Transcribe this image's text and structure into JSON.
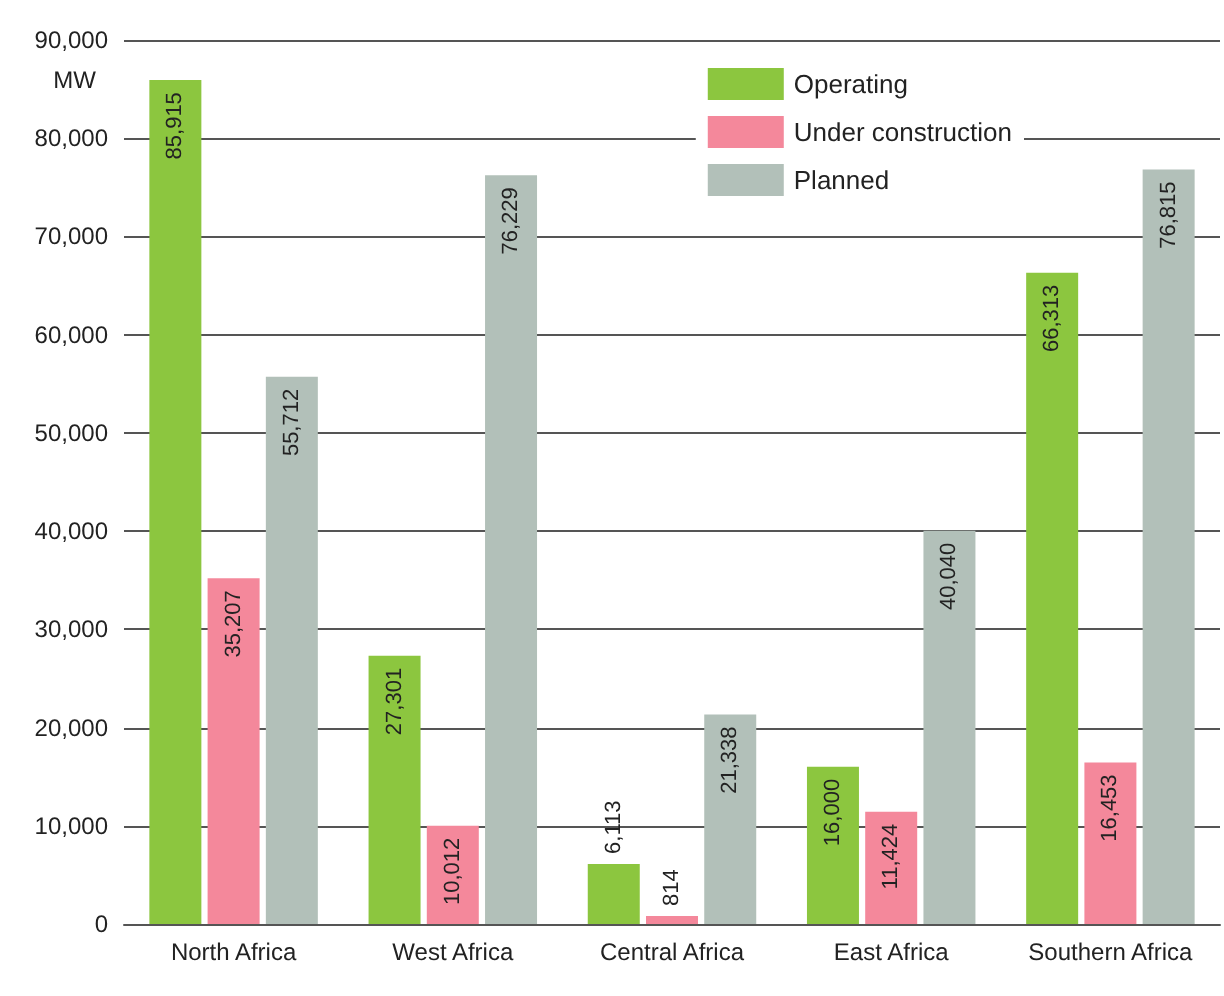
{
  "chart_data": {
    "type": "bar",
    "ylabel": "MW",
    "categories": [
      "North Africa",
      "West Africa",
      "Central Africa",
      "East Africa",
      "Southern Africa"
    ],
    "series": [
      {
        "name": "Operating",
        "color": "#8cc63f",
        "values": [
          85915,
          27301,
          6113,
          16000,
          66313
        ],
        "value_labels": [
          "85,915",
          "27,301",
          "6,113",
          "16,000",
          "66,313"
        ]
      },
      {
        "name": "Under construction",
        "color": "#f4889b",
        "values": [
          35207,
          10012,
          814,
          11424,
          16453
        ],
        "value_labels": [
          "35,207",
          "10,012",
          "814",
          "11,424",
          "16,453"
        ]
      },
      {
        "name": "Planned",
        "color": "#b2c0b9",
        "values": [
          55712,
          76229,
          21338,
          40040,
          76815
        ],
        "value_labels": [
          "55,712",
          "76,229",
          "21,338",
          "40,040",
          "76,815"
        ]
      }
    ],
    "ylim": [
      0,
      90000
    ],
    "yticks": [
      {
        "value": 0,
        "label": "0"
      },
      {
        "value": 10000,
        "label": "10,000"
      },
      {
        "value": 20000,
        "label": "20,000"
      },
      {
        "value": 30000,
        "label": "30,000"
      },
      {
        "value": 40000,
        "label": "40,000"
      },
      {
        "value": 50000,
        "label": "50,000"
      },
      {
        "value": 60000,
        "label": "60,000"
      },
      {
        "value": 70000,
        "label": "70,000"
      },
      {
        "value": 80000,
        "label": "80,000"
      },
      {
        "value": 90000,
        "label": "90,000"
      }
    ],
    "grid": "y",
    "legend": "top right"
  }
}
